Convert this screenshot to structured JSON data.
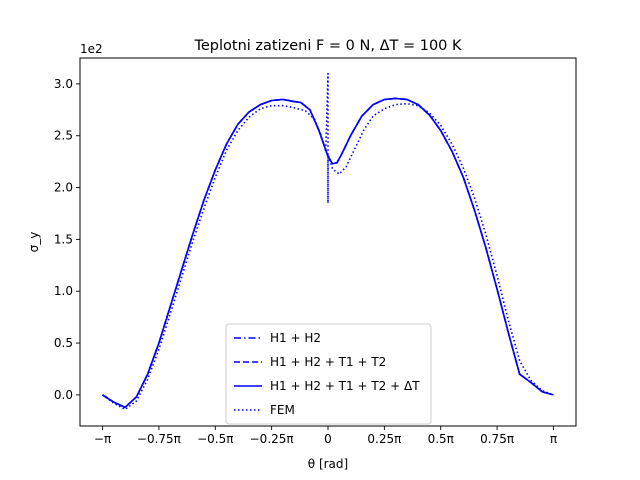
{
  "chart_data": {
    "type": "line",
    "title": "Teplotni zatizeni  F = 0 N, ΔT = 100 K",
    "xlabel": "θ [rad]",
    "ylabel": "σ_y",
    "y_offset_label": "1e2",
    "x_unit": "π rad",
    "xlim": [
      -1.1,
      1.1
    ],
    "ylim": [
      -0.3,
      3.25
    ],
    "x_ticks": [
      {
        "value": -1,
        "label": "−π"
      },
      {
        "value": -0.75,
        "label": "−0.75π"
      },
      {
        "value": -0.5,
        "label": "−0.5π"
      },
      {
        "value": -0.25,
        "label": "−0.25π"
      },
      {
        "value": 0,
        "label": "0"
      },
      {
        "value": 0.25,
        "label": "0.25π"
      },
      {
        "value": 0.5,
        "label": "0.5π"
      },
      {
        "value": 0.75,
        "label": "0.75π"
      },
      {
        "value": 1,
        "label": "π"
      }
    ],
    "y_ticks": [
      {
        "value": 0.0,
        "label": "0.0"
      },
      {
        "value": 0.5,
        "label": "0.5"
      },
      {
        "value": 1.0,
        "label": "1.0"
      },
      {
        "value": 1.5,
        "label": "1.5"
      },
      {
        "value": 2.0,
        "label": "2.0"
      },
      {
        "value": 2.5,
        "label": "2.5"
      },
      {
        "value": 3.0,
        "label": "3.0"
      }
    ],
    "grid": false,
    "legend_position": "lower-center",
    "series": [
      {
        "name": "H1 + H2",
        "color": "#0000ff",
        "style": "dashdot",
        "x": [
          -1.0,
          -0.95,
          -0.9,
          -0.85,
          -0.8,
          -0.75,
          -0.7,
          -0.65,
          -0.6,
          -0.55,
          -0.5,
          -0.45,
          -0.4,
          -0.35,
          -0.3,
          -0.25,
          -0.2,
          -0.15,
          -0.12,
          -0.08,
          -0.04,
          0.0,
          0.02,
          0.04,
          0.06,
          0.1,
          0.15,
          0.2,
          0.25,
          0.3,
          0.35,
          0.4,
          0.45,
          0.5,
          0.55,
          0.6,
          0.65,
          0.7,
          0.75,
          0.8,
          0.85,
          0.9,
          0.95,
          1.0
        ],
        "y": [
          0.0,
          -0.07,
          -0.12,
          -0.02,
          0.2,
          0.5,
          0.85,
          1.2,
          1.55,
          1.88,
          2.17,
          2.42,
          2.61,
          2.73,
          2.8,
          2.84,
          2.85,
          2.83,
          2.82,
          2.75,
          2.55,
          2.3,
          2.23,
          2.24,
          2.32,
          2.5,
          2.69,
          2.8,
          2.85,
          2.86,
          2.85,
          2.8,
          2.7,
          2.55,
          2.35,
          2.1,
          1.78,
          1.42,
          1.02,
          0.6,
          0.2,
          0.12,
          0.03,
          0.0
        ]
      },
      {
        "name": "H1 + H2 + T1 + T2",
        "color": "#0000ff",
        "style": "dashed",
        "x": [
          -1.0,
          -0.95,
          -0.9,
          -0.85,
          -0.8,
          -0.75,
          -0.7,
          -0.65,
          -0.6,
          -0.55,
          -0.5,
          -0.45,
          -0.4,
          -0.35,
          -0.3,
          -0.25,
          -0.2,
          -0.15,
          -0.12,
          -0.08,
          -0.04,
          0.0,
          0.02,
          0.04,
          0.06,
          0.1,
          0.15,
          0.2,
          0.25,
          0.3,
          0.35,
          0.4,
          0.45,
          0.5,
          0.55,
          0.6,
          0.65,
          0.7,
          0.75,
          0.8,
          0.85,
          0.9,
          0.95,
          1.0
        ],
        "y": [
          0.0,
          -0.07,
          -0.12,
          -0.02,
          0.2,
          0.5,
          0.85,
          1.2,
          1.55,
          1.88,
          2.17,
          2.42,
          2.61,
          2.73,
          2.8,
          2.84,
          2.85,
          2.83,
          2.82,
          2.75,
          2.55,
          2.3,
          2.23,
          2.24,
          2.32,
          2.5,
          2.69,
          2.8,
          2.85,
          2.86,
          2.85,
          2.8,
          2.7,
          2.55,
          2.35,
          2.1,
          1.78,
          1.42,
          1.02,
          0.6,
          0.2,
          0.12,
          0.03,
          0.0
        ]
      },
      {
        "name": "H1 + H2 + T1 + T2 + ΔT",
        "color": "#0000ff",
        "style": "solid",
        "x": [
          -1.0,
          -0.95,
          -0.9,
          -0.85,
          -0.8,
          -0.75,
          -0.7,
          -0.65,
          -0.6,
          -0.55,
          -0.5,
          -0.45,
          -0.4,
          -0.35,
          -0.3,
          -0.25,
          -0.2,
          -0.15,
          -0.12,
          -0.08,
          -0.04,
          0.0,
          0.02,
          0.04,
          0.06,
          0.1,
          0.15,
          0.2,
          0.25,
          0.3,
          0.35,
          0.4,
          0.45,
          0.5,
          0.55,
          0.6,
          0.65,
          0.7,
          0.75,
          0.8,
          0.85,
          0.9,
          0.95,
          1.0
        ],
        "y": [
          0.0,
          -0.07,
          -0.12,
          -0.02,
          0.2,
          0.5,
          0.85,
          1.2,
          1.55,
          1.88,
          2.17,
          2.42,
          2.61,
          2.73,
          2.8,
          2.84,
          2.85,
          2.83,
          2.82,
          2.75,
          2.55,
          2.3,
          2.23,
          2.24,
          2.32,
          2.5,
          2.69,
          2.8,
          2.85,
          2.86,
          2.85,
          2.8,
          2.7,
          2.55,
          2.35,
          2.1,
          1.78,
          1.42,
          1.02,
          0.6,
          0.2,
          0.12,
          0.03,
          0.0
        ]
      },
      {
        "name": "FEM",
        "color": "#0000ff",
        "style": "dotted",
        "x": [
          -1.0,
          -0.95,
          -0.9,
          -0.85,
          -0.8,
          -0.75,
          -0.7,
          -0.65,
          -0.6,
          -0.55,
          -0.5,
          -0.45,
          -0.4,
          -0.35,
          -0.3,
          -0.25,
          -0.2,
          -0.15,
          -0.1,
          -0.06,
          -0.03,
          -0.01,
          0.0,
          0.0,
          0.0,
          0.02,
          0.05,
          0.08,
          0.12,
          0.16,
          0.2,
          0.25,
          0.3,
          0.35,
          0.4,
          0.45,
          0.5,
          0.55,
          0.6,
          0.65,
          0.7,
          0.75,
          0.8,
          0.85,
          0.9,
          0.95,
          1.0
        ],
        "y": [
          0.0,
          -0.08,
          -0.14,
          -0.06,
          0.15,
          0.44,
          0.78,
          1.13,
          1.48,
          1.8,
          2.1,
          2.36,
          2.55,
          2.68,
          2.76,
          2.79,
          2.79,
          2.77,
          2.74,
          2.66,
          2.5,
          2.35,
          3.1,
          1.85,
          2.32,
          2.18,
          2.13,
          2.2,
          2.38,
          2.56,
          2.69,
          2.76,
          2.8,
          2.81,
          2.79,
          2.72,
          2.6,
          2.42,
          2.19,
          1.9,
          1.55,
          1.15,
          0.72,
          0.33,
          0.14,
          0.04,
          0.0
        ]
      }
    ]
  }
}
